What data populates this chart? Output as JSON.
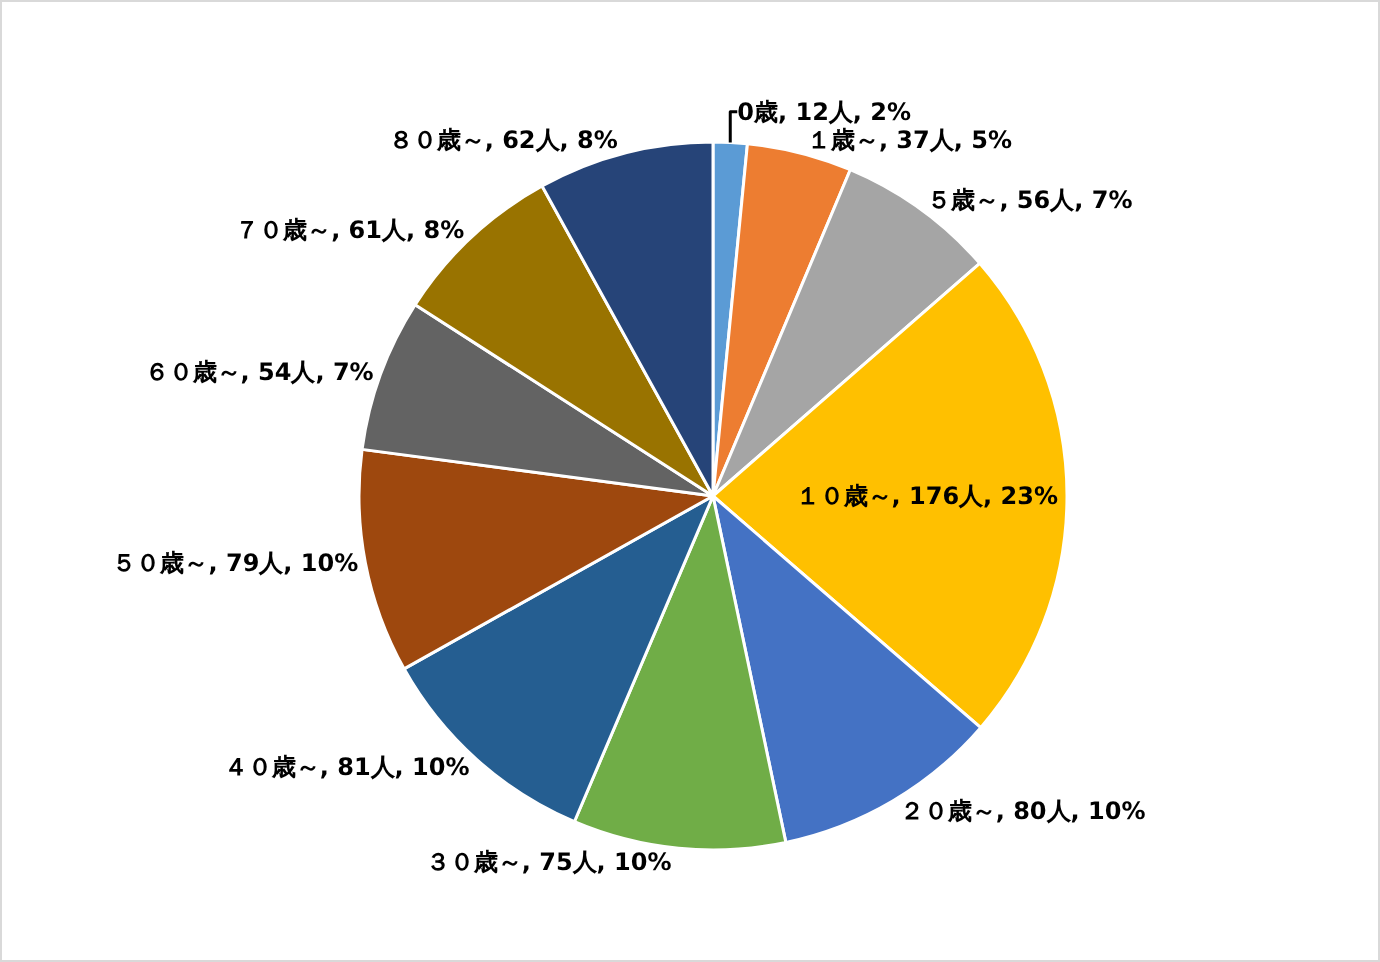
{
  "chart_data": {
    "type": "pie",
    "categories": [
      "0歳",
      "１歳～",
      "５歳～",
      "１０歳～",
      "２０歳～",
      "３０歳～",
      "４０歳～",
      "５０歳～",
      "６０歳～",
      "７０歳～",
      "８０歳～"
    ],
    "values": [
      12,
      37,
      56,
      176,
      80,
      75,
      81,
      79,
      54,
      61,
      62
    ],
    "value_labels": [
      "12人, 2%",
      "37人, 5%",
      "56人, 7%",
      "176人, 23%",
      "80人, 10%",
      "75人, 10%",
      "81人, 10%",
      "79人, 10%",
      "54人, 7%",
      "61人, 8%",
      "62人, 8%"
    ],
    "colors": [
      "#5b9bd5",
      "#ed7d31",
      "#a5a5a5",
      "#ffc000",
      "#4472c4",
      "#70ad47",
      "#255e91",
      "#9e480e",
      "#636363",
      "#997300",
      "#264478"
    ],
    "legend": false
  }
}
